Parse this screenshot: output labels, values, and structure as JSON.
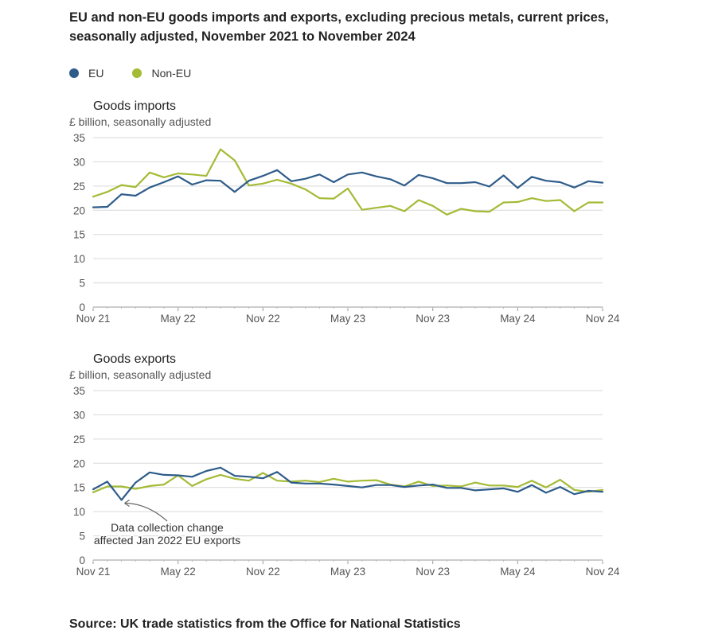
{
  "title": "EU and non-EU goods imports and exports, excluding precious metals, current prices, seasonally adjusted, November 2021 to November 2024",
  "legend": [
    {
      "name": "EU",
      "color": "#2e5c8a"
    },
    {
      "name": "Non-EU",
      "color": "#a3bb35"
    }
  ],
  "source": "Source: UK trade statistics from the Office for National Statistics",
  "chart_data": [
    {
      "type": "line",
      "title": "Goods imports",
      "ylabel": "£ billion, seasonally adjusted",
      "xlabel": "",
      "ylim": [
        0,
        35
      ],
      "yticks": [
        "35",
        "30",
        "25",
        "20",
        "15",
        "10",
        "5",
        "0"
      ],
      "xticks": [
        "Nov 21",
        "May 22",
        "Nov 22",
        "May 23",
        "Nov 23",
        "May 24",
        "Nov 24"
      ],
      "x_start": "Nov 21",
      "x_end": "Nov 24",
      "series": [
        {
          "name": "EU",
          "color": "#2e5c8a",
          "values": [
            20.6,
            20.7,
            23.3,
            23.0,
            24.7,
            25.8,
            27.0,
            25.3,
            26.2,
            26.1,
            23.8,
            26.1,
            27.1,
            28.3,
            26.0,
            26.5,
            27.4,
            25.8,
            27.4,
            27.8,
            27.0,
            26.4,
            25.1,
            27.3,
            26.6,
            25.6,
            25.6,
            25.8,
            24.9,
            27.2,
            24.6,
            26.9,
            26.1,
            25.8,
            24.7,
            26.0,
            25.7
          ]
        },
        {
          "name": "Non-EU",
          "color": "#a3bb35",
          "values": [
            22.8,
            23.8,
            25.2,
            24.8,
            27.8,
            26.8,
            27.6,
            27.4,
            27.1,
            32.6,
            30.3,
            25.1,
            25.5,
            26.3,
            25.5,
            24.3,
            22.5,
            22.4,
            24.5,
            20.1,
            20.5,
            20.9,
            19.8,
            22.1,
            20.9,
            19.1,
            20.3,
            19.8,
            19.7,
            21.6,
            21.7,
            22.5,
            21.9,
            22.1,
            19.8,
            21.6,
            21.6
          ]
        }
      ]
    },
    {
      "type": "line",
      "title": "Goods exports",
      "ylabel": "£ billion, seasonally adjusted",
      "xlabel": "",
      "ylim": [
        0,
        35
      ],
      "yticks": [
        "35",
        "30",
        "25",
        "20",
        "15",
        "10",
        "5",
        "0"
      ],
      "xticks": [
        "Nov 21",
        "May 22",
        "Nov 22",
        "May 23",
        "Nov 23",
        "May 24",
        "Nov 24"
      ],
      "x_start": "Nov 21",
      "x_end": "Nov 24",
      "annotation": {
        "lines": [
          "Data collection change",
          "affected Jan 2022 EU exports"
        ],
        "points_to_index": 2
      },
      "series": [
        {
          "name": "EU",
          "color": "#2e5c8a",
          "values": [
            14.6,
            16.2,
            12.4,
            16.0,
            18.1,
            17.6,
            17.5,
            17.2,
            18.4,
            19.1,
            17.4,
            17.2,
            16.9,
            18.2,
            16.0,
            15.8,
            15.8,
            15.6,
            15.3,
            15.0,
            15.5,
            15.5,
            15.1,
            15.4,
            15.6,
            14.9,
            14.9,
            14.4,
            14.6,
            14.8,
            14.1,
            15.5,
            13.9,
            15.1,
            13.6,
            14.3,
            14.1
          ]
        },
        {
          "name": "Non-EU",
          "color": "#a3bb35",
          "values": [
            14.0,
            15.2,
            15.2,
            14.7,
            15.3,
            15.6,
            17.5,
            15.3,
            16.7,
            17.6,
            16.8,
            16.4,
            18.0,
            16.4,
            16.2,
            16.4,
            16.1,
            16.8,
            16.2,
            16.4,
            16.5,
            15.6,
            15.2,
            16.2,
            15.3,
            15.4,
            15.2,
            16.0,
            15.4,
            15.4,
            15.1,
            16.4,
            15.0,
            16.6,
            14.5,
            14.1,
            14.5
          ]
        }
      ]
    }
  ]
}
